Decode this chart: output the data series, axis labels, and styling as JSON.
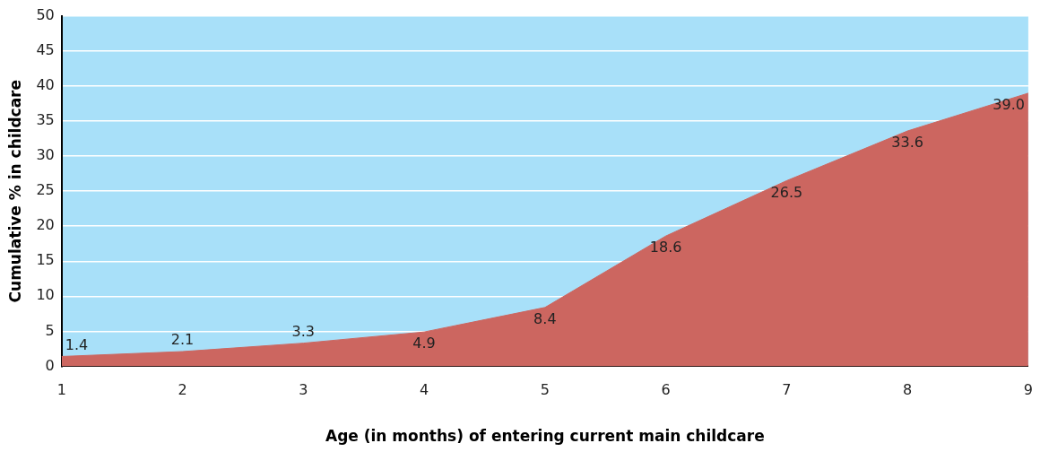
{
  "chart_data": {
    "type": "area",
    "xlabel": "Age (in months) of entering current main childcare",
    "ylabel": "Cumulative % in childcare",
    "categories": [
      "1",
      "2",
      "3",
      "4",
      "5",
      "6",
      "7",
      "8",
      "9"
    ],
    "series": [
      {
        "color": "#cc6660",
        "values": [
          1.4,
          2.1,
          3.3,
          4.9,
          8.4,
          18.6,
          26.5,
          33.6,
          39.0
        ],
        "value_labels": [
          "1.4",
          "2.1",
          "3.3",
          "4.9",
          "8.4",
          "18.6",
          "26.5",
          "33.6",
          "39.0"
        ]
      }
    ],
    "ylim": [
      0,
      50
    ],
    "yticks": [
      0,
      5,
      10,
      15,
      20,
      25,
      30,
      35,
      40,
      45,
      50
    ],
    "grid": "y",
    "legend": false
  }
}
